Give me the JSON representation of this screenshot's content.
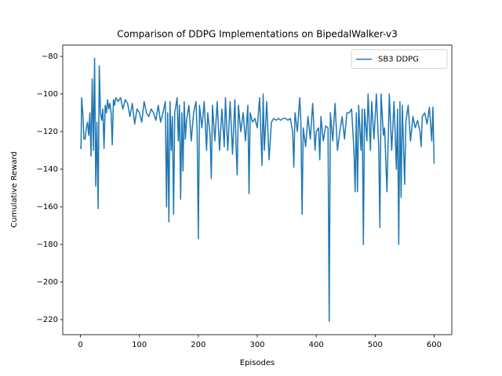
{
  "chart_data": {
    "type": "line",
    "title": "Comparison of DDPG Implementations on BipedalWalker-v3",
    "x_label": "Episodes",
    "y_label": "Cumulative Reward",
    "legend": "upper right",
    "xlim": [
      -30,
      630
    ],
    "ylim": [
      -228,
      -74
    ],
    "xticks": [
      0,
      100,
      200,
      300,
      400,
      500,
      600
    ],
    "yticks": [
      {
        "value": -220,
        "label": "−220"
      },
      {
        "value": -200,
        "label": "−200"
      },
      {
        "value": -180,
        "label": "−180"
      },
      {
        "value": -160,
        "label": "−160"
      },
      {
        "value": -140,
        "label": "−140"
      },
      {
        "value": -120,
        "label": "−120"
      },
      {
        "value": -100,
        "label": "−100"
      },
      {
        "value": -80,
        "label": "−80"
      }
    ],
    "x": [
      0,
      1,
      2,
      4,
      6,
      8,
      10,
      12,
      14,
      16,
      18,
      20,
      22,
      24,
      26,
      28,
      30,
      32,
      34,
      36,
      38,
      40,
      42,
      44,
      46,
      48,
      50,
      52,
      54,
      56,
      58,
      60,
      64,
      68,
      72,
      76,
      80,
      84,
      88,
      92,
      96,
      100,
      104,
      108,
      112,
      116,
      120,
      124,
      128,
      132,
      136,
      140,
      144,
      146,
      148,
      150,
      152,
      154,
      156,
      158,
      160,
      164,
      166,
      168,
      170,
      172,
      174,
      176,
      178,
      180,
      184,
      188,
      192,
      196,
      198,
      200,
      202,
      206,
      210,
      214,
      216,
      220,
      222,
      224,
      228,
      232,
      236,
      240,
      244,
      246,
      250,
      254,
      258,
      262,
      264,
      266,
      268,
      272,
      276,
      280,
      284,
      286,
      288,
      292,
      296,
      300,
      304,
      308,
      310,
      312,
      316,
      320,
      324,
      328,
      332,
      336,
      340,
      344,
      348,
      352,
      356,
      360,
      362,
      364,
      368,
      372,
      374,
      376,
      378,
      382,
      386,
      390,
      394,
      398,
      400,
      404,
      406,
      408,
      412,
      416,
      420,
      422,
      424,
      428,
      432,
      436,
      440,
      444,
      448,
      452,
      456,
      460,
      464,
      466,
      468,
      470,
      472,
      476,
      478,
      480,
      482,
      486,
      488,
      492,
      494,
      498,
      502,
      506,
      508,
      510,
      514,
      516,
      520,
      524,
      528,
      532,
      536,
      538,
      540,
      542,
      544,
      546,
      550,
      552,
      556,
      560,
      564,
      568,
      572,
      576,
      578,
      580,
      584,
      588,
      592,
      596,
      598,
      600
    ],
    "series": [
      {
        "name": "SB3 DDPG",
        "color": "#1f77b4",
        "values": [
          -128,
          -129,
          -102,
          -110,
          -124,
          -124,
          -118,
          -115,
          -122,
          -110,
          -133,
          -92,
          -130,
          -81,
          -149,
          -115,
          -161,
          -85,
          -110,
          -114,
          -108,
          -129,
          -106,
          -110,
          -103,
          -108,
          -105,
          -110,
          -127,
          -103,
          -106,
          -102,
          -104,
          -102,
          -108,
          -103,
          -105,
          -112,
          -105,
          -116,
          -108,
          -110,
          -115,
          -104,
          -110,
          -112,
          -108,
          -110,
          -114,
          -106,
          -115,
          -110,
          -104,
          -160,
          -110,
          -168,
          -104,
          -130,
          -112,
          -164,
          -110,
          -102,
          -125,
          -106,
          -156,
          -110,
          -141,
          -104,
          -124,
          -114,
          -106,
          -125,
          -110,
          -104,
          -120,
          -177,
          -106,
          -118,
          -104,
          -130,
          -110,
          -122,
          -145,
          -106,
          -125,
          -104,
          -130,
          -108,
          -128,
          -102,
          -130,
          -104,
          -132,
          -103,
          -128,
          -143,
          -106,
          -120,
          -110,
          -125,
          -106,
          -153,
          -110,
          -115,
          -113,
          -118,
          -102,
          -138,
          -100,
          -130,
          -104,
          -135,
          -115,
          -113,
          -114,
          -113,
          -114,
          -113,
          -113,
          -114,
          -113,
          -120,
          -139,
          -110,
          -120,
          -102,
          -115,
          -164,
          -118,
          -128,
          -112,
          -124,
          -105,
          -130,
          -120,
          -118,
          -135,
          -112,
          -125,
          -117,
          -118,
          -221,
          -110,
          -125,
          -105,
          -130,
          -120,
          -112,
          -124,
          -110,
          -110,
          -108,
          -130,
          -152,
          -110,
          -152,
          -106,
          -130,
          -108,
          -180,
          -108,
          -125,
          -100,
          -130,
          -104,
          -124,
          -100,
          -128,
          -171,
          -100,
          -122,
          -118,
          -152,
          -100,
          -130,
          -104,
          -140,
          -108,
          -180,
          -104,
          -155,
          -106,
          -148,
          -115,
          -106,
          -125,
          -112,
          -118,
          -114,
          -120,
          -128,
          -112,
          -110,
          -116,
          -107,
          -125,
          -107,
          -137
        ]
      }
    ]
  }
}
